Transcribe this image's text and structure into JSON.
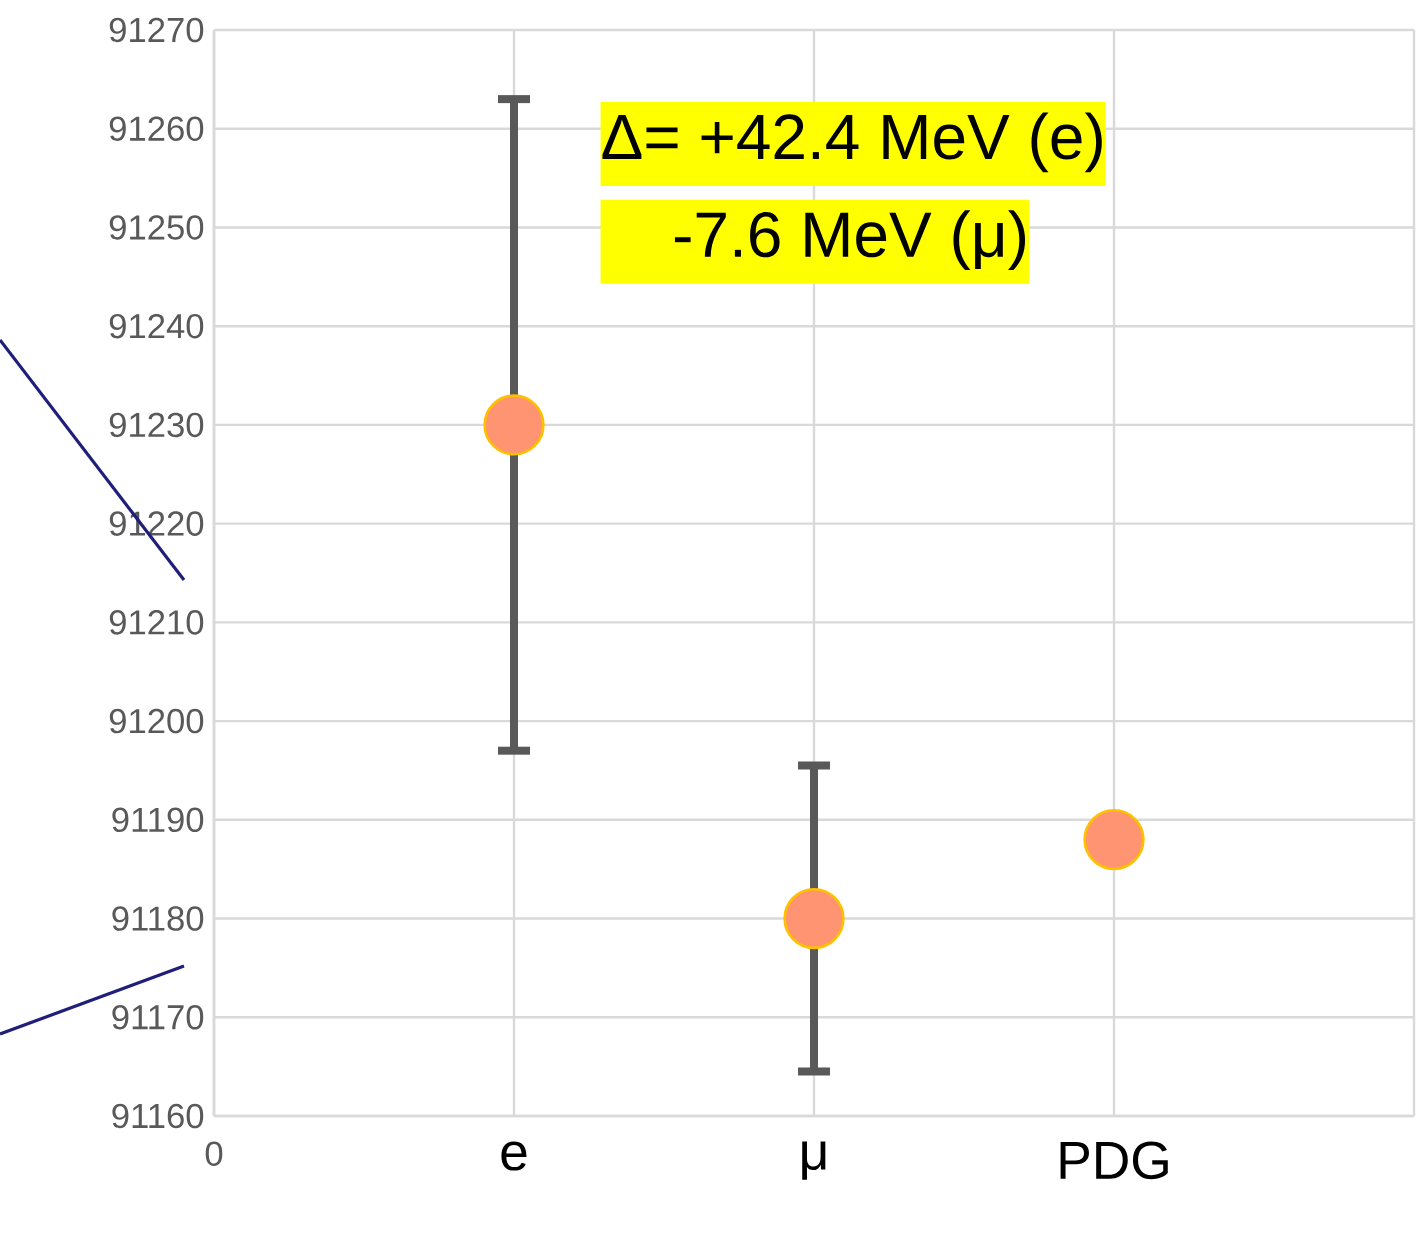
{
  "chart_data": {
    "type": "scatter",
    "categories": [
      "0",
      "e",
      "μ",
      "PDG",
      null
    ],
    "values": [
      null,
      91230,
      91180,
      91188,
      null
    ],
    "errors": [
      null,
      33,
      15.5,
      null,
      null
    ],
    "color": "#ff9473",
    "marker": "circle",
    "ylim": [
      91160,
      91270
    ],
    "yticks": [
      91160,
      91170,
      91180,
      91190,
      91200,
      91210,
      91220,
      91230,
      91240,
      91250,
      91260,
      91270
    ],
    "grid": true,
    "annotations": [
      "Δ= +42.4 MeV (e)",
      "   -7.6  MeV (μ)"
    ]
  }
}
